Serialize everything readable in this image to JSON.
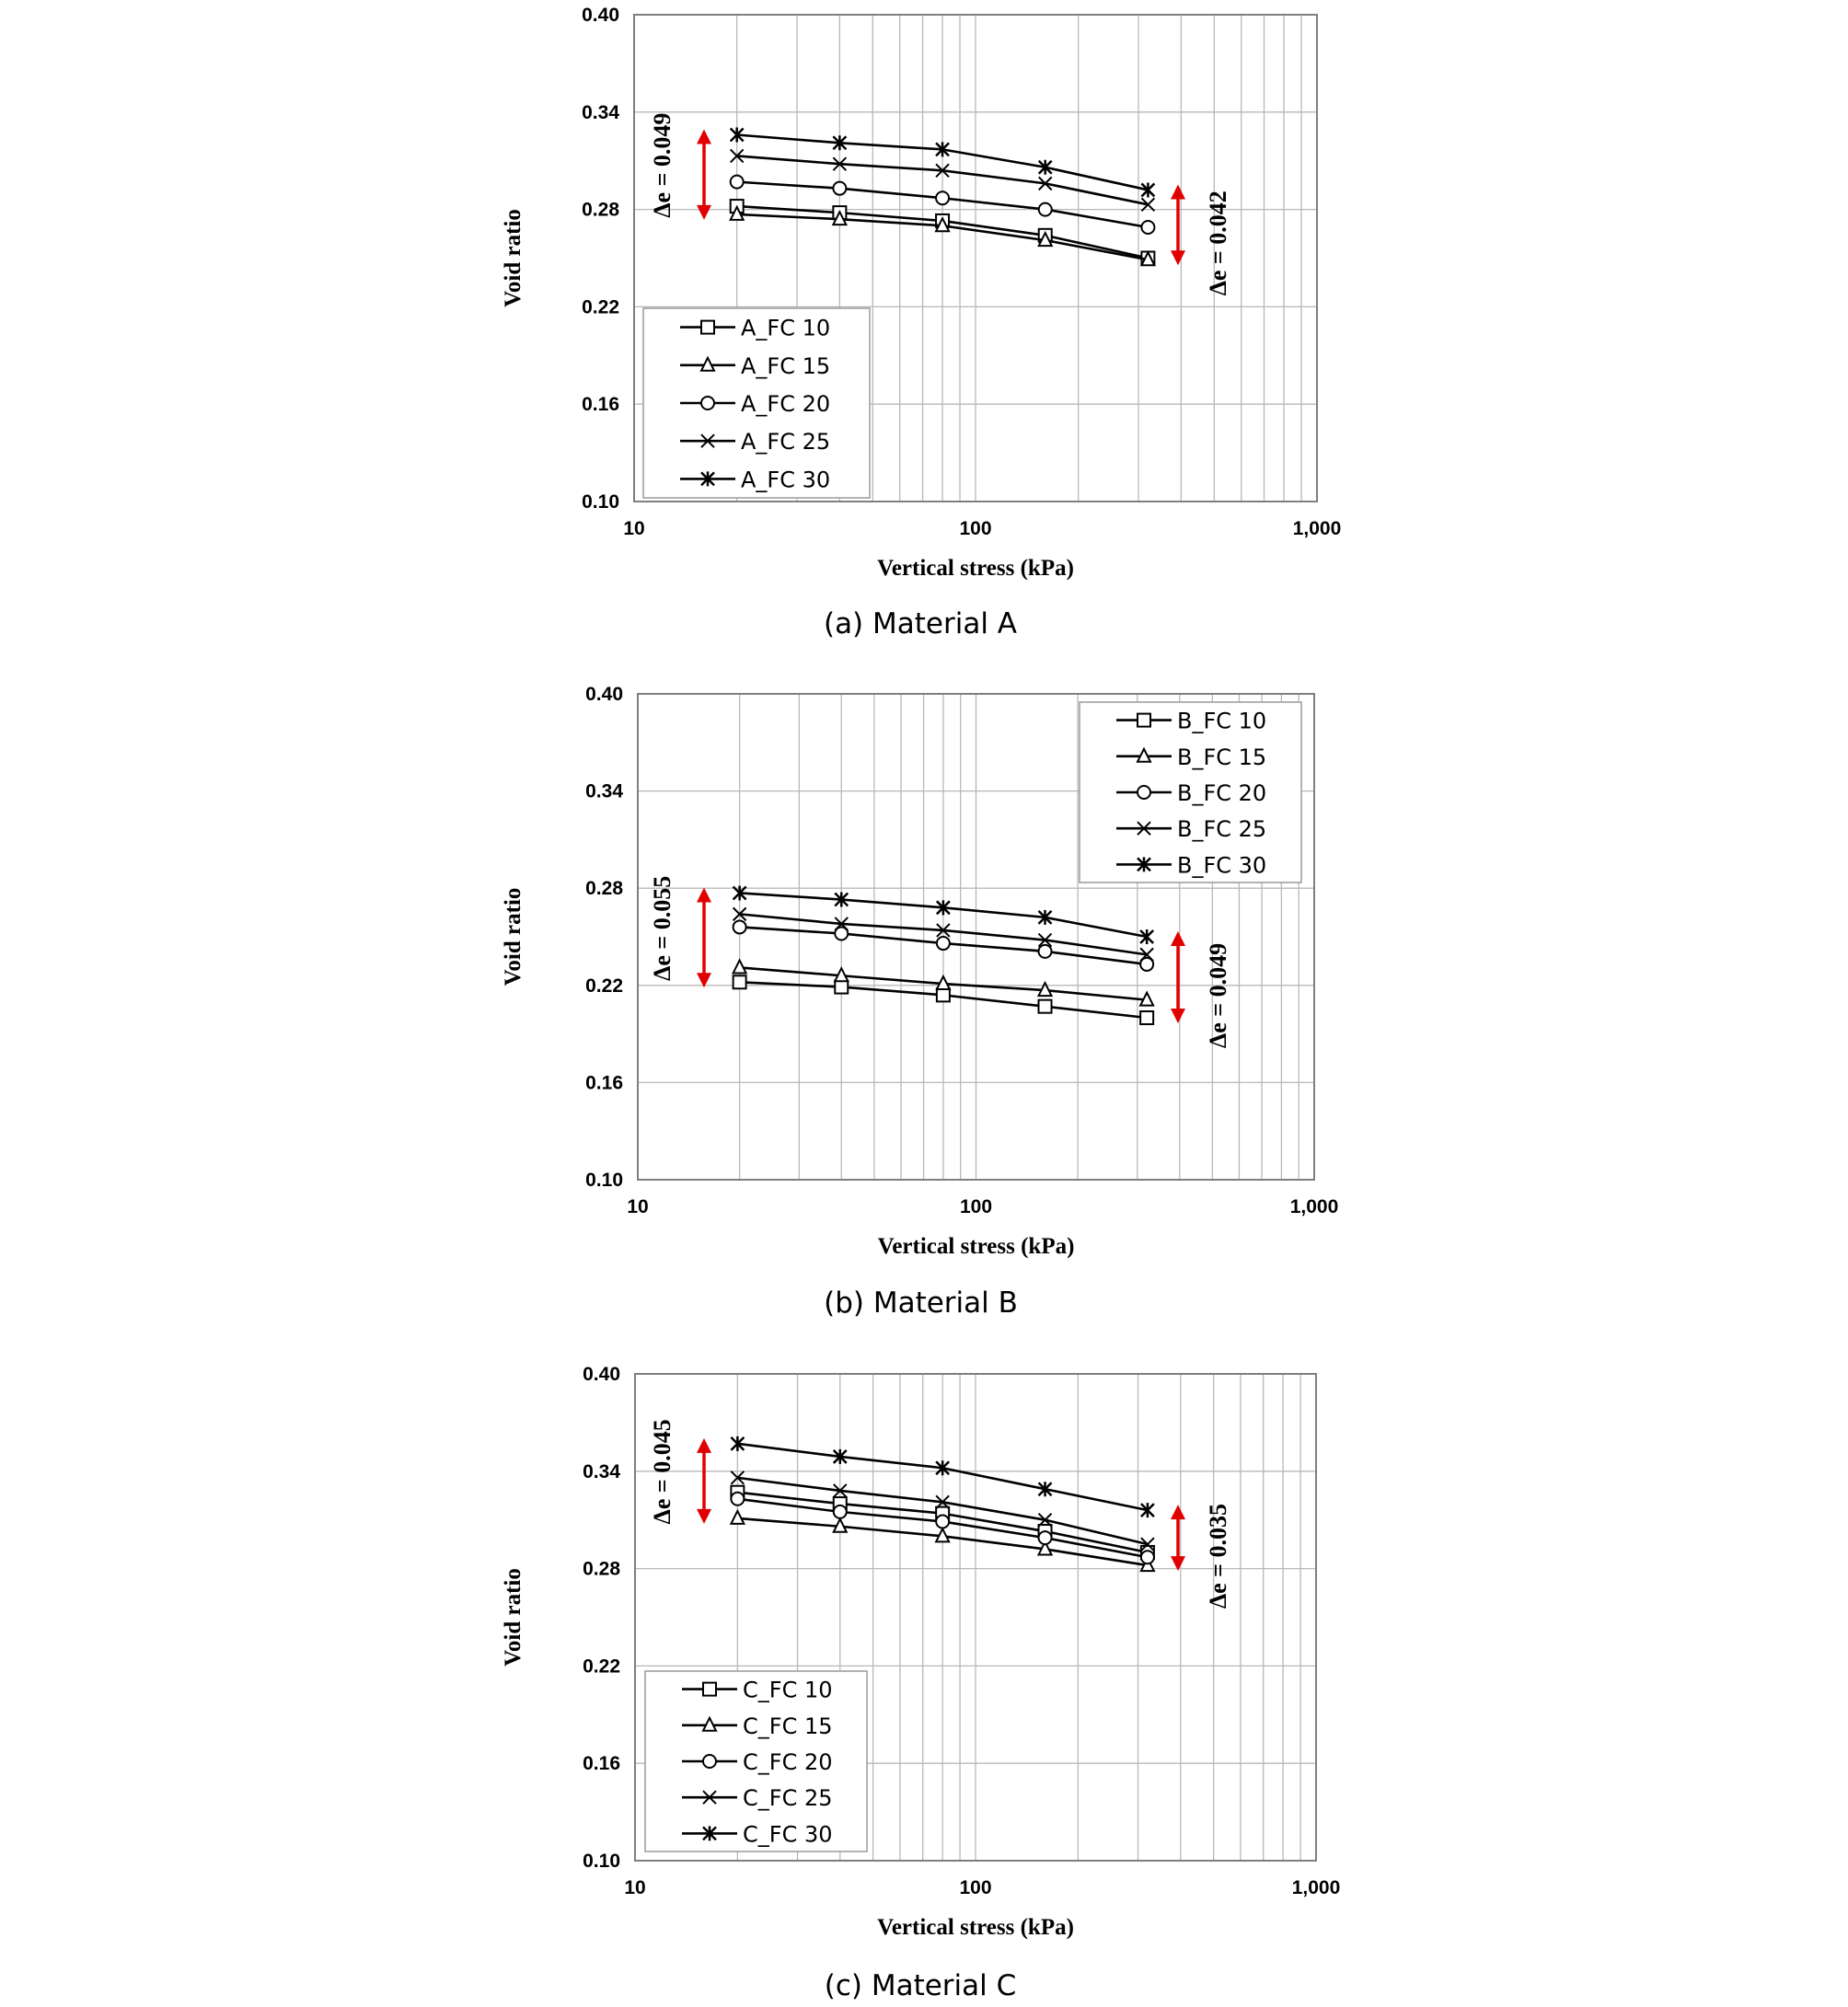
{
  "colors": {
    "grid": "#b8b8b8",
    "frame": "#7f7f7f",
    "series": "#000000",
    "arrow": "#e00000",
    "legend_border": "#9a9a9a"
  },
  "chart_data": [
    {
      "type": "line",
      "caption": "(a) Material A",
      "xlabel": "Vertical stress (kPa)",
      "ylabel": "Void ratio",
      "xscale": "log",
      "xlim": [
        10,
        1000
      ],
      "ylim": [
        0.1,
        0.4
      ],
      "xticks": [
        {
          "v": 10,
          "label": "10"
        },
        {
          "v": 100,
          "label": "100"
        },
        {
          "v": 1000,
          "label": "1,000"
        }
      ],
      "yticks": [
        {
          "v": 0.1,
          "label": "0.10"
        },
        {
          "v": 0.16,
          "label": "0.16"
        },
        {
          "v": 0.22,
          "label": "0.22"
        },
        {
          "v": 0.28,
          "label": "0.28"
        },
        {
          "v": 0.34,
          "label": "0.34"
        },
        {
          "v": 0.4,
          "label": "0.40"
        }
      ],
      "grid": true,
      "legend_position": "bottom-left",
      "x": [
        20,
        40,
        80,
        160,
        320
      ],
      "series": [
        {
          "name": "A_FC 10",
          "marker": "square",
          "values": [
            0.282,
            0.278,
            0.273,
            0.264,
            0.25
          ]
        },
        {
          "name": "A_FC 15",
          "marker": "triangle",
          "values": [
            0.277,
            0.274,
            0.27,
            0.261,
            0.249
          ]
        },
        {
          "name": "A_FC 20",
          "marker": "circle",
          "values": [
            0.297,
            0.293,
            0.287,
            0.28,
            0.269
          ]
        },
        {
          "name": "A_FC 25",
          "marker": "x",
          "values": [
            0.313,
            0.308,
            0.304,
            0.296,
            0.283
          ]
        },
        {
          "name": "A_FC 30",
          "marker": "star",
          "values": [
            0.326,
            0.321,
            0.317,
            0.306,
            0.292
          ]
        }
      ],
      "annotations": [
        {
          "text": "Δe = 0.049",
          "side": "left",
          "from": 0.277,
          "to": 0.326
        },
        {
          "text": "Δe = 0.042",
          "side": "right",
          "from": 0.249,
          "to": 0.292
        }
      ]
    },
    {
      "type": "line",
      "caption": "(b) Material B",
      "xlabel": "Vertical stress (kPa)",
      "ylabel": "Void ratio",
      "xscale": "log",
      "xlim": [
        10,
        1000
      ],
      "ylim": [
        0.1,
        0.4
      ],
      "xticks": [
        {
          "v": 10,
          "label": "10"
        },
        {
          "v": 100,
          "label": "100"
        },
        {
          "v": 1000,
          "label": "1,000"
        }
      ],
      "yticks": [
        {
          "v": 0.1,
          "label": "0.10"
        },
        {
          "v": 0.16,
          "label": "0.16"
        },
        {
          "v": 0.22,
          "label": "0.22"
        },
        {
          "v": 0.28,
          "label": "0.28"
        },
        {
          "v": 0.34,
          "label": "0.34"
        },
        {
          "v": 0.4,
          "label": "0.40"
        }
      ],
      "grid": true,
      "legend_position": "top-right",
      "x": [
        20,
        40,
        80,
        160,
        320
      ],
      "series": [
        {
          "name": "B_FC 10",
          "marker": "square",
          "values": [
            0.222,
            0.219,
            0.214,
            0.207,
            0.2
          ]
        },
        {
          "name": "B_FC 15",
          "marker": "triangle",
          "values": [
            0.231,
            0.226,
            0.221,
            0.217,
            0.211
          ]
        },
        {
          "name": "B_FC 20",
          "marker": "circle",
          "values": [
            0.256,
            0.252,
            0.246,
            0.241,
            0.233
          ]
        },
        {
          "name": "B_FC 25",
          "marker": "x",
          "values": [
            0.264,
            0.258,
            0.254,
            0.248,
            0.239
          ]
        },
        {
          "name": "B_FC 30",
          "marker": "star",
          "values": [
            0.277,
            0.273,
            0.268,
            0.262,
            0.25
          ]
        }
      ],
      "annotations": [
        {
          "text": "Δe = 0.055",
          "side": "left",
          "from": 0.222,
          "to": 0.277
        },
        {
          "text": "Δe = 0.049",
          "side": "right",
          "from": 0.2,
          "to": 0.25
        }
      ]
    },
    {
      "type": "line",
      "caption": "(c) Material C",
      "xlabel": "Vertical stress (kPa)",
      "ylabel": "Void ratio",
      "xscale": "log",
      "xlim": [
        10,
        1000
      ],
      "ylim": [
        0.1,
        0.4
      ],
      "xticks": [
        {
          "v": 10,
          "label": "10"
        },
        {
          "v": 100,
          "label": "100"
        },
        {
          "v": 1000,
          "label": "1,000"
        }
      ],
      "yticks": [
        {
          "v": 0.1,
          "label": "0.10"
        },
        {
          "v": 0.16,
          "label": "0.16"
        },
        {
          "v": 0.22,
          "label": "0.22"
        },
        {
          "v": 0.28,
          "label": "0.28"
        },
        {
          "v": 0.34,
          "label": "0.34"
        },
        {
          "v": 0.4,
          "label": "0.40"
        }
      ],
      "grid": true,
      "legend_position": "bottom-left",
      "x": [
        20,
        40,
        80,
        160,
        320
      ],
      "series": [
        {
          "name": "C_FC 10",
          "marker": "square",
          "values": [
            0.327,
            0.32,
            0.314,
            0.303,
            0.29
          ]
        },
        {
          "name": "C_FC 15",
          "marker": "triangle",
          "values": [
            0.311,
            0.306,
            0.3,
            0.292,
            0.282
          ]
        },
        {
          "name": "C_FC 20",
          "marker": "circle",
          "values": [
            0.323,
            0.315,
            0.309,
            0.299,
            0.287
          ]
        },
        {
          "name": "C_FC 25",
          "marker": "x",
          "values": [
            0.336,
            0.328,
            0.321,
            0.31,
            0.295
          ]
        },
        {
          "name": "C_FC 30",
          "marker": "star",
          "values": [
            0.357,
            0.349,
            0.342,
            0.329,
            0.316
          ]
        }
      ],
      "annotations": [
        {
          "text": "Δe = 0.045",
          "side": "left",
          "from": 0.311,
          "to": 0.357
        },
        {
          "text": "Δe = 0.035",
          "side": "right",
          "from": 0.282,
          "to": 0.316
        }
      ]
    }
  ]
}
